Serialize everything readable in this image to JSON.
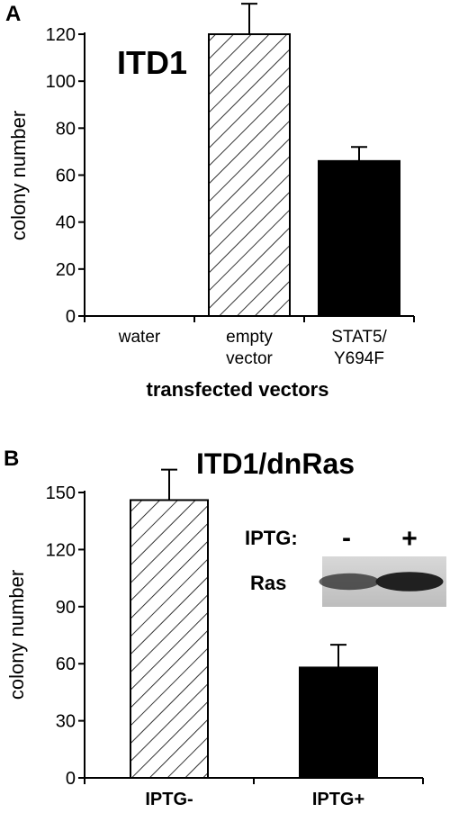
{
  "chart_data": [
    {
      "type": "bar",
      "panel_label": "A",
      "title": "ITD1",
      "xlabel": "transfected vectors",
      "ylabel": "colony number",
      "ylim": [
        0,
        120
      ],
      "yticks": [
        0,
        20,
        40,
        60,
        80,
        100,
        120
      ],
      "categories": [
        [
          "water"
        ],
        [
          "empty",
          "vector"
        ],
        [
          "STAT5/",
          "Y694F"
        ]
      ],
      "values": [
        0,
        120,
        66
      ],
      "errors": [
        0,
        13,
        6
      ],
      "fills": [
        "none",
        "hatch",
        "solid"
      ]
    },
    {
      "type": "bar",
      "panel_label": "B",
      "title": "ITD1/dnRas",
      "xlabel": "",
      "ylabel": "colony number",
      "ylim": [
        0,
        150
      ],
      "yticks": [
        0,
        30,
        60,
        90,
        120,
        150
      ],
      "categories": [
        [
          "IPTG-"
        ],
        [
          "IPTG+"
        ]
      ],
      "values": [
        146,
        58
      ],
      "errors": [
        16,
        12
      ],
      "fills": [
        "hatch",
        "solid"
      ],
      "inset": {
        "header_label": "IPTG:",
        "lanes": [
          "-",
          "+"
        ],
        "row_label": "Ras",
        "band_intensity": [
          0.55,
          0.95
        ]
      }
    }
  ],
  "colors": {
    "axis": "#000000",
    "solid_bar": "#000000",
    "hatch_bg": "#ffffff",
    "blot_bg": "#c9c9c9",
    "band": "#1a1a1a"
  }
}
